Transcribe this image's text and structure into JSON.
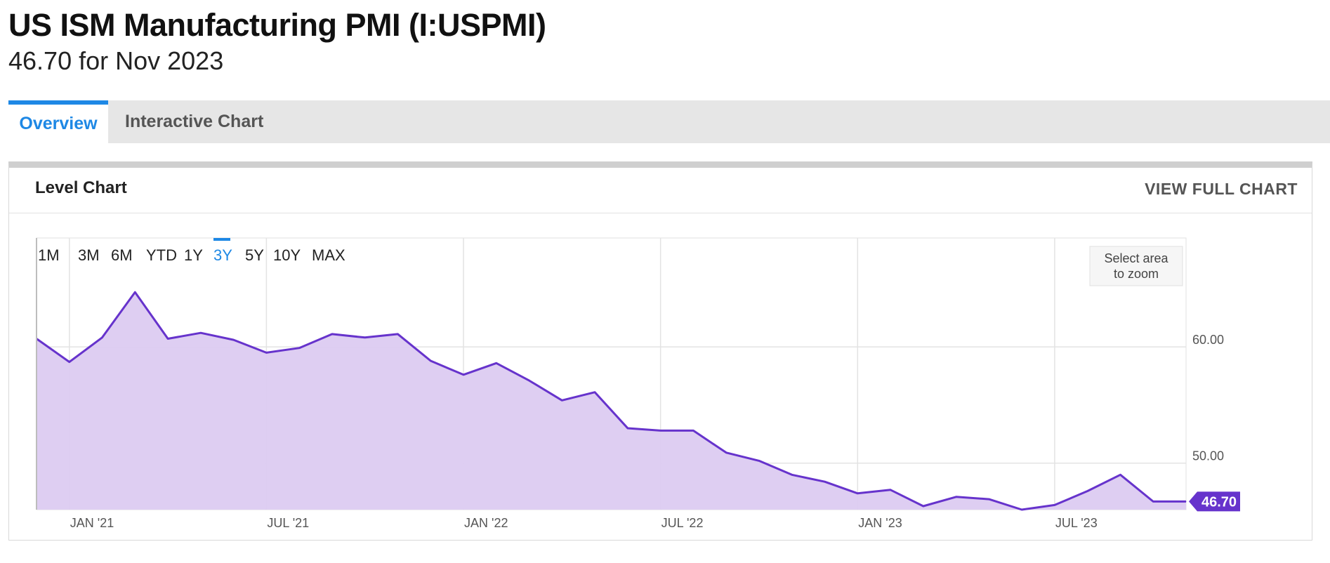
{
  "page": {
    "title": "US ISM Manufacturing PMI (I:USPMI)",
    "subtitle": "46.70 for Nov 2023"
  },
  "tabs": [
    {
      "label": "Overview",
      "active": true
    },
    {
      "label": "Interactive Chart",
      "active": false
    }
  ],
  "card": {
    "title": "Level Chart",
    "view_full_label": "VIEW FULL CHART"
  },
  "range_buttons": [
    {
      "label": "1M",
      "active": false
    },
    {
      "label": "3M",
      "active": false
    },
    {
      "label": "6M",
      "active": false
    },
    {
      "label": "YTD",
      "active": false
    },
    {
      "label": "1Y",
      "active": false
    },
    {
      "label": "3Y",
      "active": true
    },
    {
      "label": "5Y",
      "active": false
    },
    {
      "label": "10Y",
      "active": false
    },
    {
      "label": "MAX",
      "active": false
    }
  ],
  "zoom_hint": [
    "Select area",
    "to zoom"
  ],
  "chart_data": {
    "type": "area",
    "series": [
      {
        "name": "",
        "color": "#6633cc",
        "fill": "#dccbf1",
        "x": [
          "2020-12",
          "2021-01",
          "2021-02",
          "2021-03",
          "2021-04",
          "2021-05",
          "2021-06",
          "2021-07",
          "2021-08",
          "2021-09",
          "2021-10",
          "2021-11",
          "2021-12",
          "2022-01",
          "2022-02",
          "2022-03",
          "2022-04",
          "2022-05",
          "2022-06",
          "2022-07",
          "2022-08",
          "2022-09",
          "2022-10",
          "2022-11",
          "2022-12",
          "2023-01",
          "2023-02",
          "2023-03",
          "2023-04",
          "2023-05",
          "2023-06",
          "2023-07",
          "2023-08",
          "2023-09",
          "2023-10",
          "2023-11"
        ],
        "values": [
          60.7,
          58.7,
          60.8,
          64.7,
          60.7,
          61.2,
          60.6,
          59.5,
          59.9,
          61.1,
          60.8,
          61.1,
          58.8,
          57.6,
          58.6,
          57.1,
          55.4,
          56.1,
          53.0,
          52.8,
          52.8,
          50.9,
          50.2,
          49.0,
          48.4,
          47.4,
          47.7,
          46.3,
          47.1,
          46.9,
          46.0,
          46.4,
          47.6,
          49.0,
          46.7,
          46.7
        ]
      }
    ],
    "x_ticks": [
      {
        "date": "2021-01",
        "label": "JAN '21"
      },
      {
        "date": "2021-07",
        "label": "JUL '21"
      },
      {
        "date": "2022-01",
        "label": "JAN '22"
      },
      {
        "date": "2022-07",
        "label": "JUL '22"
      },
      {
        "date": "2023-01",
        "label": "JAN '23"
      },
      {
        "date": "2023-07",
        "label": "JUL '23"
      }
    ],
    "y_ticks": [
      {
        "value": 60,
        "label": "60.00"
      },
      {
        "value": 50,
        "label": "50.00"
      }
    ],
    "ylim": [
      46,
      69
    ],
    "last_value_label": "46.70",
    "grid": true,
    "xlabel": "",
    "ylabel": ""
  }
}
